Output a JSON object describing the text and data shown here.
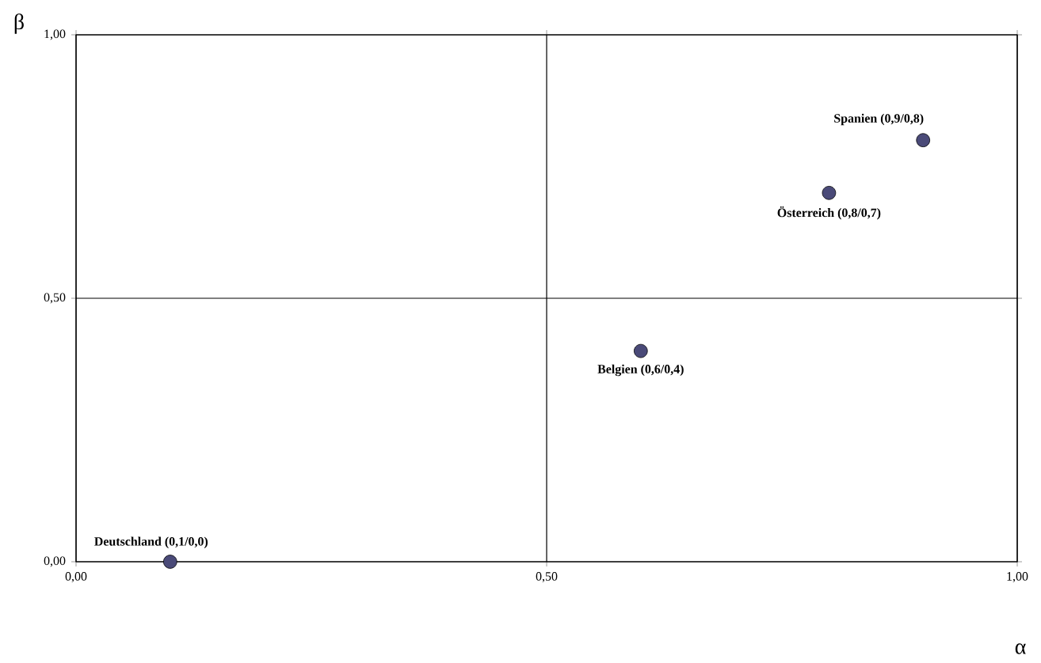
{
  "chart_data": {
    "type": "scatter",
    "xlabel": "α",
    "ylabel": "β",
    "x": [
      0.1,
      0.6,
      0.8,
      0.9
    ],
    "values": [
      0.0,
      0.4,
      0.7,
      0.8
    ],
    "color": "#4a4a78",
    "xlim": [
      0,
      1
    ],
    "ylim": [
      0,
      1
    ],
    "xticks": [
      {
        "value": 0,
        "label": "0,00"
      },
      {
        "value": 0.5,
        "label": "0,50"
      },
      {
        "value": 1,
        "label": "1,00"
      }
    ],
    "yticks": [
      {
        "value": 0,
        "label": "0,00"
      },
      {
        "value": 0.5,
        "label": "0,50"
      },
      {
        "value": 1,
        "label": "1,00"
      }
    ],
    "grid": true,
    "annotations": [
      {
        "text": "Deutschland (0,1/0,0)",
        "x": 0.1,
        "y": 0.0
      },
      {
        "text": "Belgien (0,6/0,4)",
        "x": 0.6,
        "y": 0.4
      },
      {
        "text": "Österreich (0,8/0,7)",
        "x": 0.8,
        "y": 0.7
      },
      {
        "text": "Spanien (0,9/0,8)",
        "x": 0.9,
        "y": 0.8
      }
    ]
  }
}
